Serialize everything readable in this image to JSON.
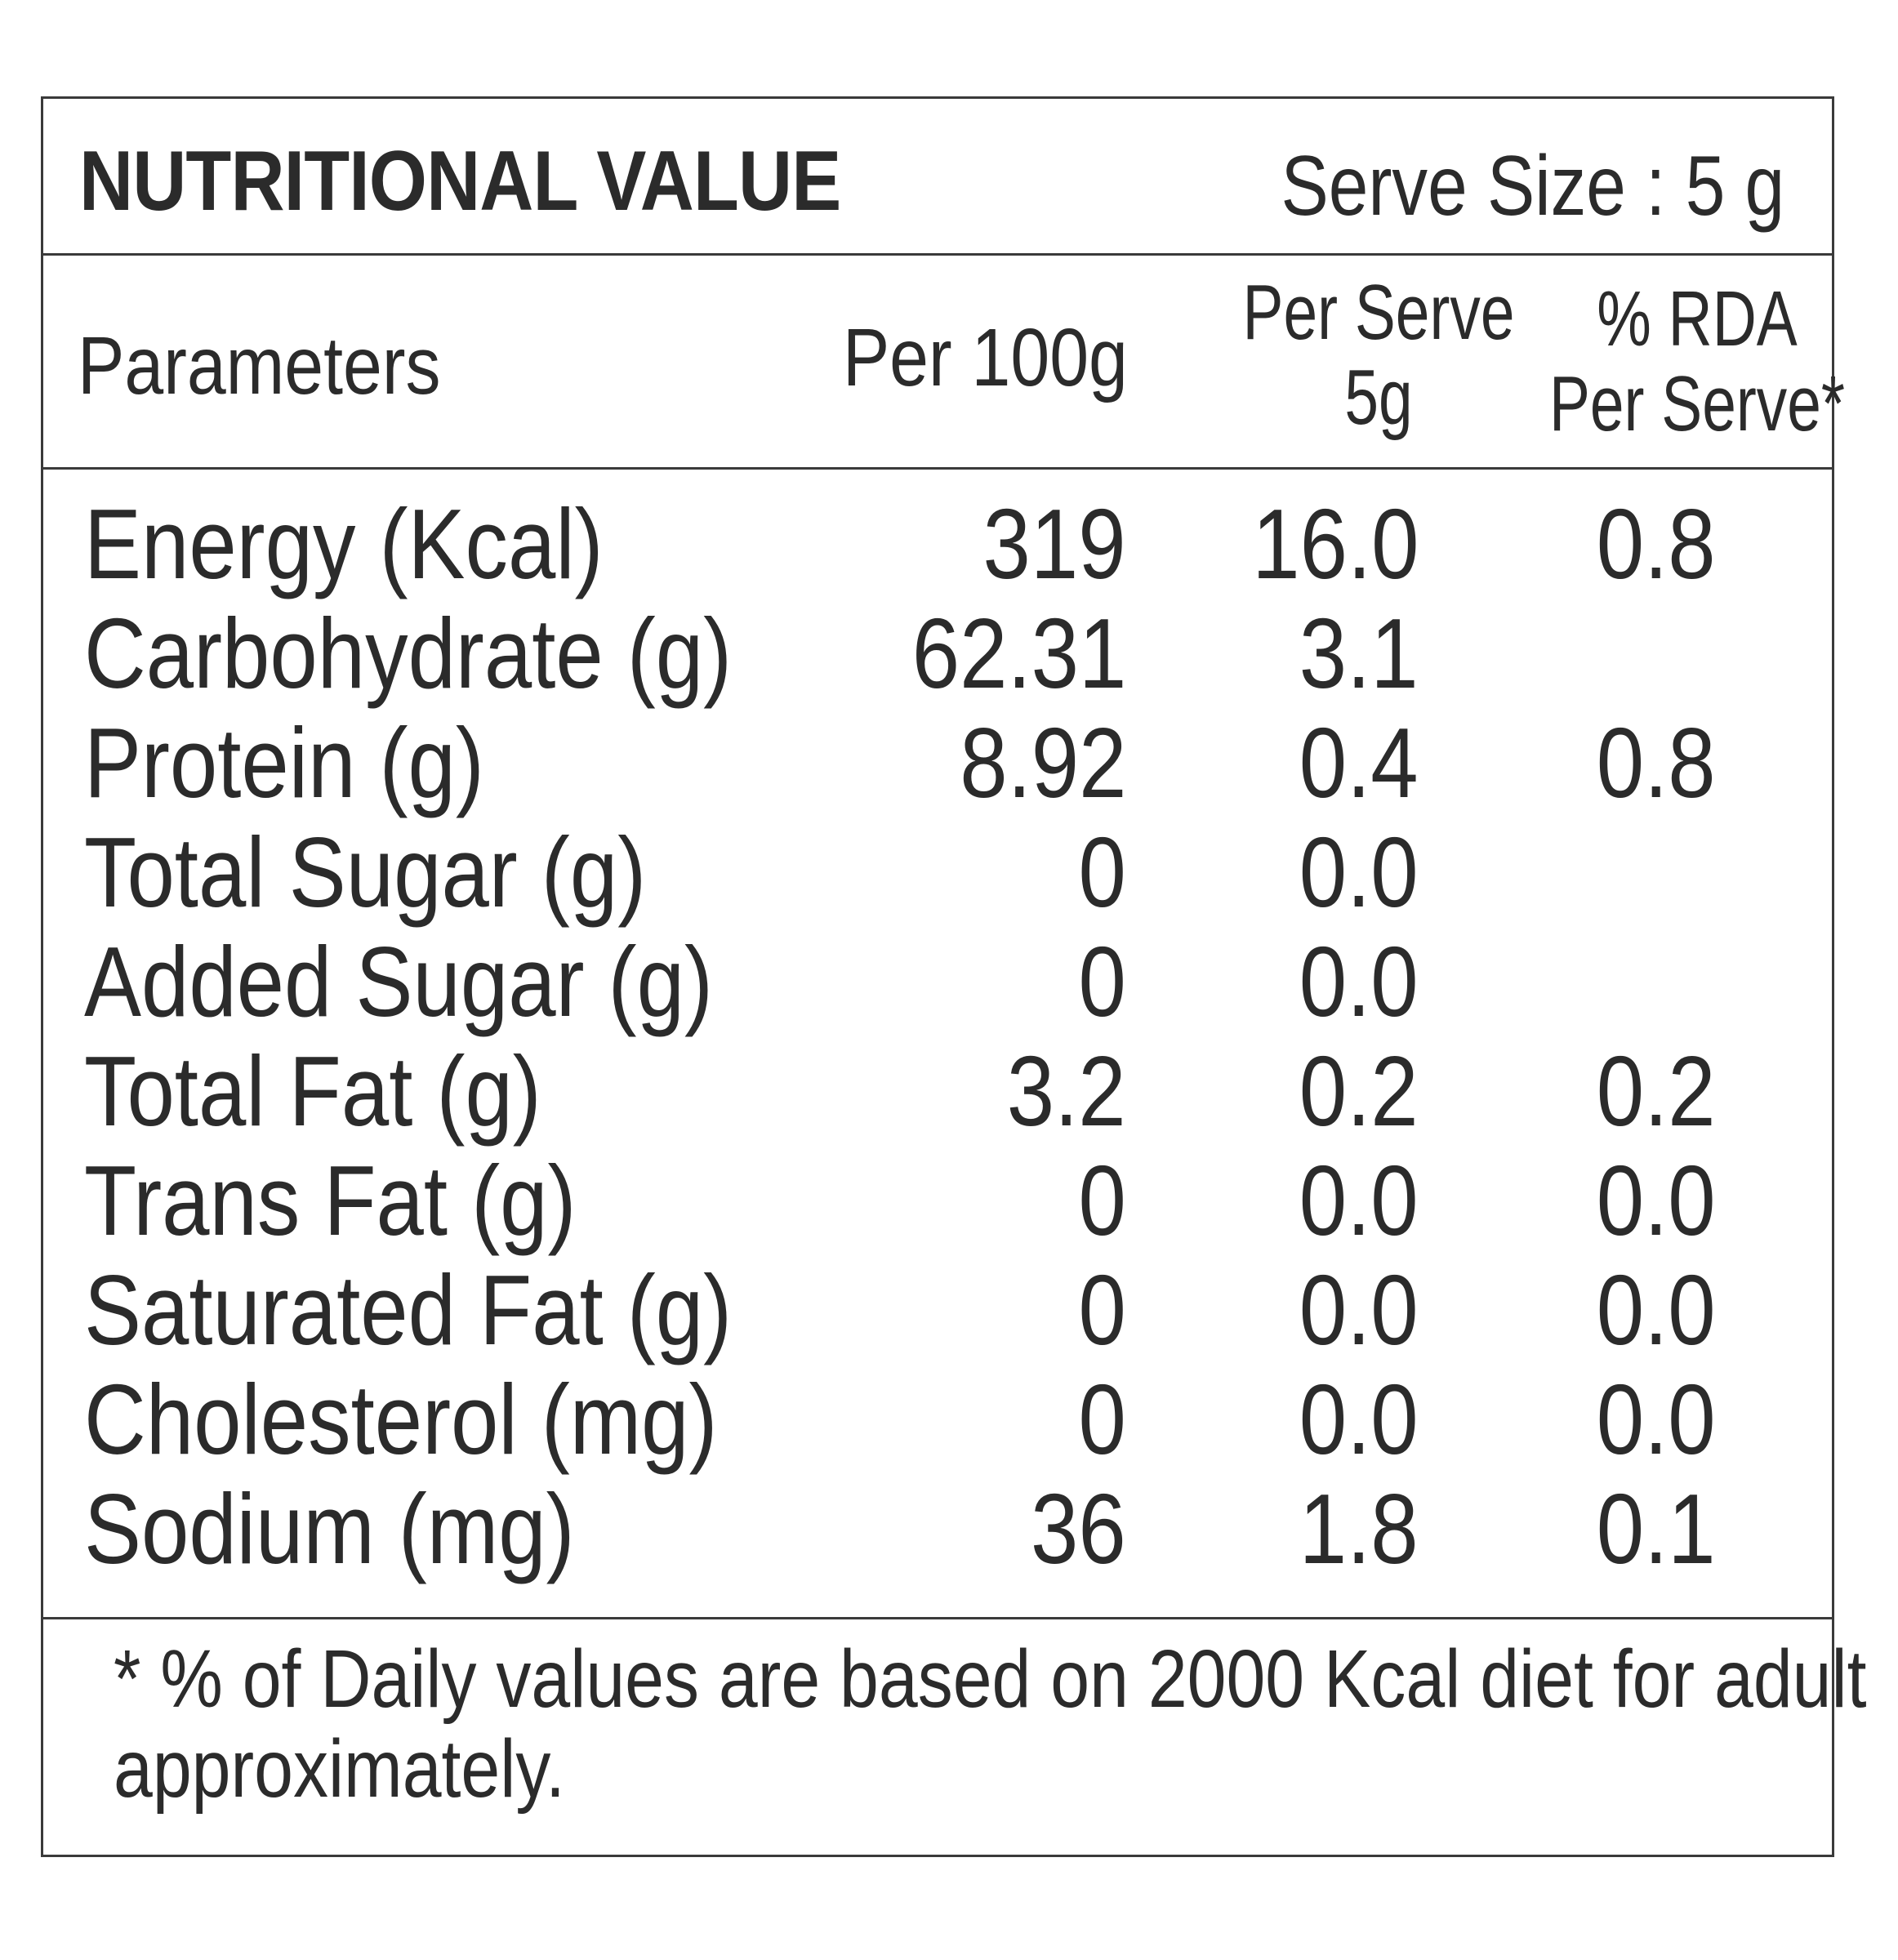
{
  "panel": {
    "title": "NUTRITIONAL VALUE",
    "serve_size": "Serve Size : 5 g"
  },
  "columns": {
    "parameters": "Parameters",
    "per_100g": "Per 100g",
    "per_serve_line1": "Per Serve",
    "per_serve_line2": "5g",
    "rda_line1": "% RDA",
    "rda_line2": "Per Serve*"
  },
  "rows": [
    {
      "name": "Energy (Kcal)",
      "per_100g": "319",
      "per_serve": "16.0",
      "rda": "0.8"
    },
    {
      "name": "Carbohydrate (g)",
      "per_100g": "62.31",
      "per_serve": "3.1",
      "rda": ""
    },
    {
      "name": "Protein (g)",
      "per_100g": "8.92",
      "per_serve": "0.4",
      "rda": "0.8"
    },
    {
      "name": "Total Sugar (g)",
      "per_100g": "0",
      "per_serve": "0.0",
      "rda": ""
    },
    {
      "name": "Added Sugar (g)",
      "per_100g": "0",
      "per_serve": "0.0",
      "rda": ""
    },
    {
      "name": "Total Fat (g)",
      "per_100g": "3.2",
      "per_serve": "0.2",
      "rda": "0.2"
    },
    {
      "name": "Trans Fat (g)",
      "per_100g": "0",
      "per_serve": "0.0",
      "rda": "0.0"
    },
    {
      "name": "Saturated Fat (g)",
      "per_100g": "0",
      "per_serve": "0.0",
      "rda": "0.0"
    },
    {
      "name": "Cholesterol (mg)",
      "per_100g": "0",
      "per_serve": "0.0",
      "rda": "0.0"
    },
    {
      "name": "Sodium (mg)",
      "per_100g": "36",
      "per_serve": "1.8",
      "rda": "0.1"
    }
  ],
  "footnote": {
    "line1": "* % of Daily values are based on 2000 Kcal diet for adult",
    "line2": "approximately."
  },
  "colors": {
    "text": "#2b2b2b",
    "border": "#3a3a3a",
    "background": "#ffffff"
  }
}
